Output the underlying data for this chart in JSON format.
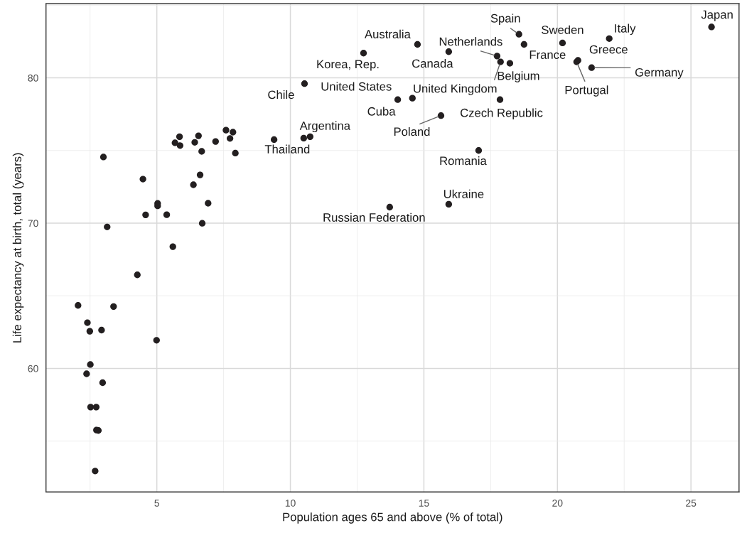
{
  "chart_data": {
    "type": "scatter",
    "xlabel": "Population ages 65 and above (% of total)",
    "ylabel": "Life expectancy at birth, total (years)",
    "color": "#231f20",
    "marker": "circle",
    "grid": true,
    "x": [
      25.77,
      21.94,
      20.19,
      18.56,
      18.75,
      17.74,
      18.22,
      17.87,
      20.77,
      20.72,
      21.28,
      17.85,
      15.64,
      17.05,
      15.93,
      15.93,
      14.76,
      12.74,
      14.57,
      10.53,
      14.02,
      10.74,
      10.5,
      13.72,
      9.39,
      7.59,
      7.85,
      7.74,
      7.94,
      7.2,
      6.56,
      6.42,
      6.68,
      5.85,
      5.68,
      5.87,
      3.0,
      4.48,
      6.62,
      6.37,
      5.03,
      5.03,
      6.92,
      4.58,
      5.37,
      6.7,
      3.14,
      5.6,
      4.27,
      2.05,
      3.38,
      2.4,
      2.49,
      2.93,
      4.99,
      2.51,
      2.37,
      2.97,
      2.52,
      2.73,
      2.74,
      2.81,
      2.69
    ],
    "values": [
      83.5,
      82.7,
      82.4,
      83.0,
      82.3,
      81.5,
      81.0,
      81.1,
      81.2,
      81.1,
      80.7,
      78.5,
      77.4,
      75.0,
      71.3,
      81.8,
      82.3,
      81.7,
      78.6,
      79.6,
      78.5,
      75.95,
      75.85,
      71.1,
      75.75,
      76.4,
      76.26,
      75.83,
      74.82,
      75.62,
      76.01,
      75.56,
      74.94,
      75.95,
      75.53,
      75.34,
      74.55,
      73.03,
      73.32,
      72.64,
      71.36,
      71.19,
      71.37,
      70.57,
      70.58,
      69.99,
      69.74,
      68.38,
      66.44,
      64.34,
      64.26,
      63.15,
      62.56,
      62.64,
      61.94,
      60.27,
      59.63,
      59.02,
      57.34,
      57.34,
      55.76,
      55.73,
      52.94
    ],
    "xlim": [
      0.85,
      26.8
    ],
    "ylim": [
      51.5,
      85.1
    ],
    "xticks": [
      5,
      10,
      15,
      20,
      25
    ],
    "yticks": [
      60,
      70,
      80
    ],
    "annotations": [
      {
        "text": "Japan",
        "x": 25.77,
        "y": 83.5
      },
      {
        "text": "Italy",
        "x": 21.94,
        "y": 82.7
      },
      {
        "text": "Sweden",
        "x": 20.19,
        "y": 82.4
      },
      {
        "text": "Spain",
        "x": 18.56,
        "y": 83.0
      },
      {
        "text": "France",
        "x": 18.75,
        "y": 82.3
      },
      {
        "text": "Netherlands",
        "x": 17.74,
        "y": 81.5
      },
      {
        "text": "Belgium",
        "x": 18.22,
        "y": 81.0
      },
      {
        "text": "United Kingdom",
        "x": 17.87,
        "y": 81.1
      },
      {
        "text": "Greece",
        "x": 20.77,
        "y": 81.2
      },
      {
        "text": "Portugal",
        "x": 20.72,
        "y": 81.1
      },
      {
        "text": "Germany",
        "x": 21.28,
        "y": 80.7
      },
      {
        "text": "Czech Republic",
        "x": 17.85,
        "y": 78.5
      },
      {
        "text": "Poland",
        "x": 15.64,
        "y": 77.4
      },
      {
        "text": "Romania",
        "x": 17.05,
        "y": 75.0
      },
      {
        "text": "Ukraine",
        "x": 15.93,
        "y": 71.3
      },
      {
        "text": "Canada",
        "x": 15.93,
        "y": 81.8
      },
      {
        "text": "Australia",
        "x": 14.76,
        "y": 82.3
      },
      {
        "text": "Korea, Rep.",
        "x": 12.74,
        "y": 81.7
      },
      {
        "text": "United States",
        "x": 14.57,
        "y": 78.6
      },
      {
        "text": "Chile",
        "x": 10.53,
        "y": 79.6
      },
      {
        "text": "Cuba",
        "x": 14.02,
        "y": 78.5
      },
      {
        "text": "Argentina",
        "x": 10.74,
        "y": 75.95
      },
      {
        "text": "Thailand",
        "x": 10.5,
        "y": 75.85
      },
      {
        "text": "Russian Federation",
        "x": 13.72,
        "y": 71.1
      }
    ]
  }
}
